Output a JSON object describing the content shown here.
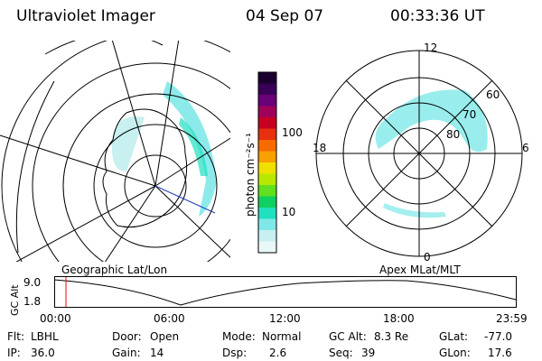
{
  "header": {
    "instrument": "Ultraviolet Imager",
    "date": "04 Sep 07",
    "time": "00:33:36 UT"
  },
  "colorbar": {
    "unit_label": "photon cm⁻²s⁻¹",
    "ticks": [
      "100",
      "10"
    ],
    "colors": [
      "#1a0030",
      "#3a0058",
      "#6a0078",
      "#a0005a",
      "#c80020",
      "#e83010",
      "#f86a00",
      "#f8a000",
      "#f0e000",
      "#b8e800",
      "#60e020",
      "#10d060",
      "#20e0c0",
      "#80e8e8",
      "#c8f0f0",
      "#e8f8f8"
    ]
  },
  "left_map": {
    "label": "Geographic Lat/Lon"
  },
  "right_map": {
    "label": "Apex MLat/MLT",
    "mlt_labels": [
      "12",
      "18",
      "6",
      "0"
    ],
    "lat_labels": [
      "60",
      "70",
      "80"
    ]
  },
  "altitude_plot": {
    "ylabel": "GC Alt",
    "yticks": [
      "9.0",
      "1.8"
    ],
    "xticks": [
      "00:00",
      "06:00",
      "12:00",
      "18:00",
      "23:59"
    ],
    "marker_color": "#ff0000"
  },
  "status": {
    "flt_label": "Flt:",
    "flt_value": "LBHL",
    "ip_label": "IP:",
    "ip_value": "36.0",
    "door_label": "Door:",
    "door_value": "Open",
    "gain_label": "Gain:",
    "gain_value": "14",
    "mode_label": "Mode:",
    "mode_value": "Normal",
    "dsp_label": "Dsp:",
    "dsp_value": "2.6",
    "gcalt_label": "GC Alt:",
    "gcalt_value": "8.3 Re",
    "seq_label": "Seq:",
    "seq_value": "39",
    "glat_label": "GLat:",
    "glat_value": "-77.0",
    "glon_label": "GLon:",
    "glon_value": "17.6"
  }
}
